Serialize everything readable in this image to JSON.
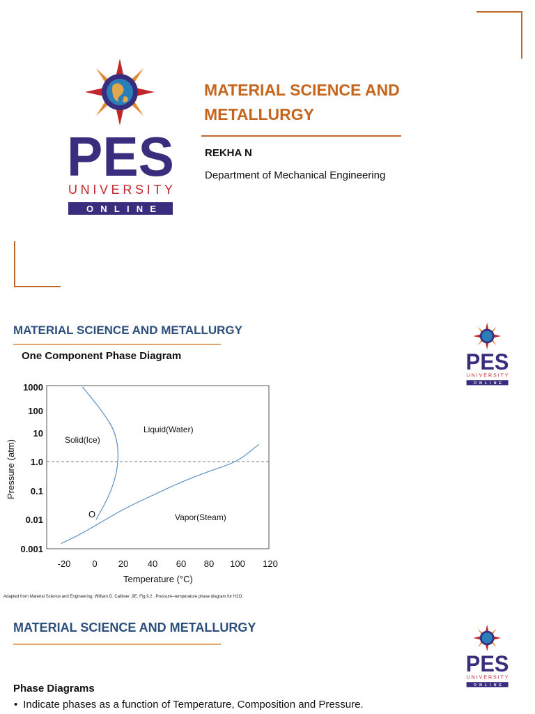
{
  "slide1": {
    "title_line1": "MATERIAL SCIENCE AND",
    "title_line2": "METALLURGY",
    "author": "REKHA N",
    "department": "Department of Mechanical Engineering"
  },
  "logo": {
    "word1": "PES",
    "word2": "UNIVERSITY",
    "word3": "ONLINE",
    "colors": {
      "navy": "#3a2d7e",
      "red": "#c0272d",
      "orange": "#e08a2c"
    }
  },
  "slide2": {
    "header": "MATERIAL SCIENCE AND METALLURGY",
    "subtitle": "One Component Phase Diagram",
    "caption": "Adapted from Material Science and Engineering, William D. Callister ,9E, Fig.9.2 . Pressure–temperature phase diagram for H2O."
  },
  "chart_data": {
    "type": "line",
    "xlabel": "Temperature (°C)",
    "ylabel": "Pressure (atm)",
    "x_ticks": [
      "-20",
      "0",
      "20",
      "40",
      "60",
      "80",
      "100",
      "120"
    ],
    "y_ticks": [
      "1000",
      "100",
      "10",
      "1.0",
      "0.1",
      "0.01",
      "0.001"
    ],
    "y_scale": "log",
    "xlim": [
      -25,
      122
    ],
    "ylim": [
      0.001,
      1000
    ],
    "region_labels": {
      "solid": "Solid(Ice)",
      "liquid": "Liquid(Water)",
      "vapor": "Vapor(Steam)",
      "triple_point": "O"
    },
    "series": [
      {
        "points": [
          [
            -8,
            1000
          ],
          [
            5,
            100
          ],
          [
            15,
            10
          ],
          [
            17,
            1.0
          ],
          [
            12,
            0.1
          ],
          [
            1,
            0.01
          ]
        ]
      },
      {
        "points": [
          [
            -22,
            0.0015
          ],
          [
            -10,
            0.003
          ],
          [
            0,
            0.006
          ],
          [
            20,
            0.023
          ],
          [
            40,
            0.07
          ],
          [
            60,
            0.2
          ],
          [
            80,
            0.47
          ],
          [
            100,
            1.0
          ],
          [
            113,
            4
          ]
        ]
      }
    ],
    "reference_line": {
      "y": 1.0,
      "style": "dashed"
    }
  },
  "slide3": {
    "header": "MATERIAL SCIENCE AND METALLURGY",
    "subtitle": "Phase Diagrams",
    "bullets": [
      "Indicate phases as a function of Temperature, Composition and Pressure."
    ]
  }
}
